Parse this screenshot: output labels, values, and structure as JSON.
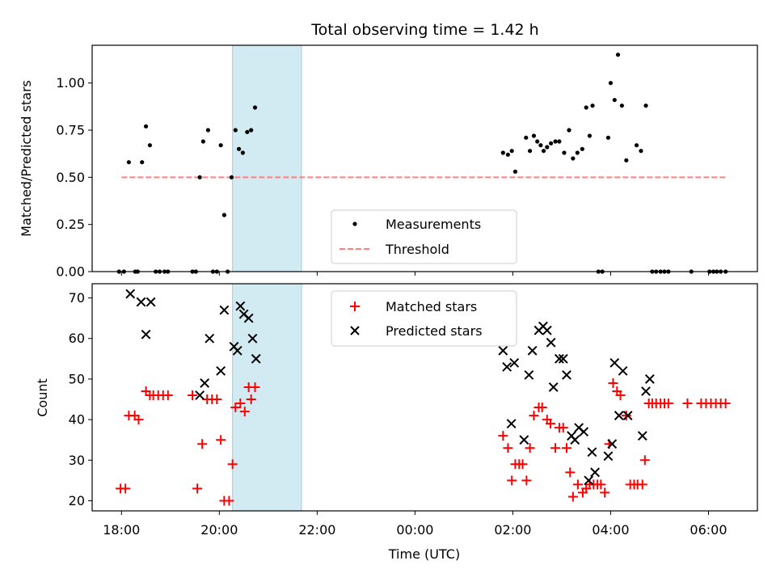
{
  "chart_data": {
    "title": "Total observing time = 1.42 h",
    "xlabel": "Time (UTC)",
    "x_unit": "hours after 18:00 UTC on first night",
    "xlim": [
      -0.6,
      13.0
    ],
    "xticks": [
      {
        "x": 0,
        "label": "18:00"
      },
      {
        "x": 2,
        "label": "20:00"
      },
      {
        "x": 4,
        "label": "22:00"
      },
      {
        "x": 6,
        "label": "00:00"
      },
      {
        "x": 8,
        "label": "02:00"
      },
      {
        "x": 10,
        "label": "04:00"
      },
      {
        "x": 12,
        "label": "06:00"
      }
    ],
    "shaded_span": {
      "x0": 2.27,
      "x1": 3.68,
      "color": "#add8e6"
    },
    "top": {
      "type": "scatter",
      "ylabel": "Matched/Predicted stars",
      "ylim": [
        0,
        1.2
      ],
      "yticks": [
        "0.00",
        "0.25",
        "0.50",
        "0.75",
        "1.00"
      ],
      "legend_position": "lower-center",
      "series": [
        {
          "name": "Measurements",
          "marker": "dot",
          "color": "#000000",
          "points": [
            [
              -0.05,
              0
            ],
            [
              0.05,
              0
            ],
            [
              0.15,
              0.58
            ],
            [
              0.28,
              0
            ],
            [
              0.33,
              0
            ],
            [
              0.42,
              0.58
            ],
            [
              0.5,
              0.77
            ],
            [
              0.58,
              0.67
            ],
            [
              0.7,
              0
            ],
            [
              0.78,
              0
            ],
            [
              0.88,
              0
            ],
            [
              0.95,
              0
            ],
            [
              1.45,
              0
            ],
            [
              1.52,
              0
            ],
            [
              1.6,
              0.5
            ],
            [
              1.67,
              0.69
            ],
            [
              1.77,
              0.75
            ],
            [
              1.87,
              0
            ],
            [
              1.95,
              0
            ],
            [
              2.03,
              0.67
            ],
            [
              2.1,
              0.3
            ],
            [
              2.17,
              0
            ],
            [
              2.25,
              0.5
            ],
            [
              2.33,
              0.75
            ],
            [
              2.4,
              0.65
            ],
            [
              2.48,
              0.63
            ],
            [
              2.57,
              0.74
            ],
            [
              2.65,
              0.75
            ],
            [
              2.73,
              0.87
            ],
            [
              7.8,
              0.63
            ],
            [
              7.9,
              0.62
            ],
            [
              7.98,
              0.64
            ],
            [
              8.05,
              0.53
            ],
            [
              8.27,
              0.71
            ],
            [
              8.35,
              0.64
            ],
            [
              8.43,
              0.72
            ],
            [
              8.5,
              0.69
            ],
            [
              8.57,
              0.67
            ],
            [
              8.63,
              0.64
            ],
            [
              8.7,
              0.66
            ],
            [
              8.78,
              0.68
            ],
            [
              8.87,
              0.69
            ],
            [
              8.95,
              0.69
            ],
            [
              9.05,
              0.63
            ],
            [
              9.15,
              0.75
            ],
            [
              9.23,
              0.6
            ],
            [
              9.32,
              0.63
            ],
            [
              9.42,
              0.65
            ],
            [
              9.5,
              0.87
            ],
            [
              9.57,
              0.72
            ],
            [
              9.63,
              0.88
            ],
            [
              9.75,
              0
            ],
            [
              9.83,
              0
            ],
            [
              9.95,
              0.71
            ],
            [
              10.0,
              1.0
            ],
            [
              10.08,
              0.91
            ],
            [
              10.15,
              1.15
            ],
            [
              10.23,
              0.88
            ],
            [
              10.32,
              0.59
            ],
            [
              10.53,
              0.67
            ],
            [
              10.62,
              0.64
            ],
            [
              10.72,
              0.88
            ],
            [
              10.85,
              0
            ],
            [
              10.93,
              0
            ],
            [
              11.02,
              0
            ],
            [
              11.1,
              0
            ],
            [
              11.18,
              0
            ],
            [
              11.65,
              0
            ],
            [
              12.02,
              0
            ],
            [
              12.1,
              0
            ],
            [
              12.17,
              0
            ],
            [
              12.25,
              0
            ],
            [
              12.35,
              0
            ]
          ]
        },
        {
          "name": "Threshold",
          "line": "dashed",
          "color": "#ff7f7f",
          "points": [
            [
              0,
              0.5
            ],
            [
              12.35,
              0.5
            ]
          ]
        }
      ]
    },
    "bottom": {
      "type": "scatter",
      "ylabel": "Count",
      "ylim": [
        17.5,
        73.5
      ],
      "yticks": [
        "20",
        "30",
        "40",
        "50",
        "60",
        "70"
      ],
      "legend_position": "upper-center",
      "series": [
        {
          "name": "Matched stars",
          "marker": "plus",
          "color": "#ff0000",
          "points": [
            [
              -0.02,
              23
            ],
            [
              0.08,
              23
            ],
            [
              0.15,
              41
            ],
            [
              0.27,
              41
            ],
            [
              0.35,
              40
            ],
            [
              0.5,
              47
            ],
            [
              0.58,
              46
            ],
            [
              0.65,
              46
            ],
            [
              0.75,
              46
            ],
            [
              0.85,
              46
            ],
            [
              0.95,
              46
            ],
            [
              1.45,
              46
            ],
            [
              1.55,
              23
            ],
            [
              1.65,
              34
            ],
            [
              1.75,
              45
            ],
            [
              1.85,
              45
            ],
            [
              1.95,
              45
            ],
            [
              2.03,
              35
            ],
            [
              2.1,
              20
            ],
            [
              2.2,
              20
            ],
            [
              2.27,
              29
            ],
            [
              2.33,
              43
            ],
            [
              2.43,
              44
            ],
            [
              2.52,
              42
            ],
            [
              2.6,
              48
            ],
            [
              2.65,
              45
            ],
            [
              2.73,
              48
            ],
            [
              7.8,
              36
            ],
            [
              7.9,
              33
            ],
            [
              7.98,
              25
            ],
            [
              8.05,
              29
            ],
            [
              8.13,
              29
            ],
            [
              8.2,
              29
            ],
            [
              8.28,
              25
            ],
            [
              8.35,
              33
            ],
            [
              8.43,
              41
            ],
            [
              8.53,
              43
            ],
            [
              8.6,
              43
            ],
            [
              8.7,
              40
            ],
            [
              8.77,
              39
            ],
            [
              8.87,
              33
            ],
            [
              8.95,
              38
            ],
            [
              9.03,
              38
            ],
            [
              9.1,
              33
            ],
            [
              9.17,
              27
            ],
            [
              9.23,
              21
            ],
            [
              9.33,
              24
            ],
            [
              9.43,
              22
            ],
            [
              9.5,
              23
            ],
            [
              9.57,
              24
            ],
            [
              9.65,
              24
            ],
            [
              9.73,
              24
            ],
            [
              9.8,
              24
            ],
            [
              9.88,
              22
            ],
            [
              9.97,
              34
            ],
            [
              10.05,
              49
            ],
            [
              10.13,
              47
            ],
            [
              10.2,
              46
            ],
            [
              10.32,
              41
            ],
            [
              10.4,
              24
            ],
            [
              10.48,
              24
            ],
            [
              10.55,
              24
            ],
            [
              10.65,
              24
            ],
            [
              10.7,
              30
            ],
            [
              10.78,
              44
            ],
            [
              10.85,
              44
            ],
            [
              10.93,
              44
            ],
            [
              11.02,
              44
            ],
            [
              11.1,
              44
            ],
            [
              11.18,
              44
            ],
            [
              11.57,
              44
            ],
            [
              11.85,
              44
            ],
            [
              11.95,
              44
            ],
            [
              12.05,
              44
            ],
            [
              12.15,
              44
            ],
            [
              12.25,
              44
            ],
            [
              12.35,
              44
            ]
          ]
        },
        {
          "name": "Predicted stars",
          "marker": "x",
          "color": "#000000",
          "points": [
            [
              0.18,
              71
            ],
            [
              0.4,
              69
            ],
            [
              0.5,
              61
            ],
            [
              0.6,
              69
            ],
            [
              1.6,
              46
            ],
            [
              1.7,
              49
            ],
            [
              1.8,
              60
            ],
            [
              2.03,
              52
            ],
            [
              2.1,
              67
            ],
            [
              2.3,
              58
            ],
            [
              2.37,
              57
            ],
            [
              2.43,
              68
            ],
            [
              2.5,
              66
            ],
            [
              2.6,
              65
            ],
            [
              2.68,
              60
            ],
            [
              2.75,
              55
            ],
            [
              7.8,
              57
            ],
            [
              7.88,
              53
            ],
            [
              7.97,
              39
            ],
            [
              8.03,
              54
            ],
            [
              8.23,
              35
            ],
            [
              8.33,
              51
            ],
            [
              8.4,
              57
            ],
            [
              8.53,
              62
            ],
            [
              8.62,
              63
            ],
            [
              8.7,
              62
            ],
            [
              8.78,
              59
            ],
            [
              8.83,
              48
            ],
            [
              8.95,
              55
            ],
            [
              9.03,
              55
            ],
            [
              9.1,
              51
            ],
            [
              9.2,
              36
            ],
            [
              9.27,
              35
            ],
            [
              9.35,
              38
            ],
            [
              9.45,
              37
            ],
            [
              9.55,
              25
            ],
            [
              9.62,
              32
            ],
            [
              9.68,
              27
            ],
            [
              9.95,
              31
            ],
            [
              10.03,
              34
            ],
            [
              10.08,
              54
            ],
            [
              10.17,
              41
            ],
            [
              10.25,
              52
            ],
            [
              10.35,
              41
            ],
            [
              10.65,
              36
            ],
            [
              10.72,
              47
            ],
            [
              10.8,
              50
            ]
          ]
        }
      ]
    }
  }
}
